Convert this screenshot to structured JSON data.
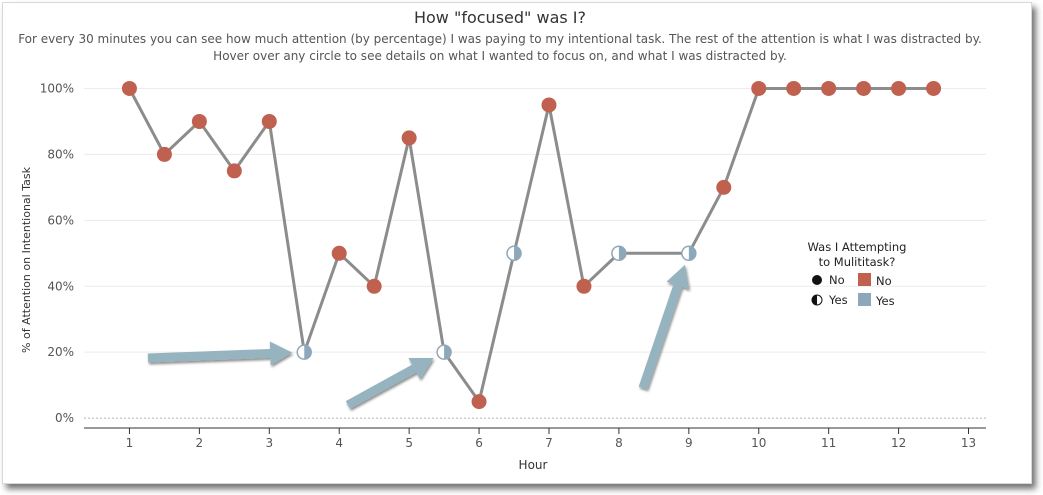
{
  "chart_data": {
    "type": "line",
    "title": "How \"focused\" was I?",
    "subtitle": [
      "For every 30 minutes you can see how much attention (by percentage) I was paying to my intentional task. The rest of the attention is what I was distracted by.",
      "Hover over any circle to see details on what I wanted to focus on, and what I was distracted by."
    ],
    "xlabel": "Hour",
    "ylabel": "% of Attention on Intentional Task",
    "xlim": [
      0.35,
      13.25
    ],
    "ylim": [
      -3,
      105
    ],
    "x_ticks": [
      1,
      2,
      3,
      4,
      5,
      6,
      7,
      8,
      9,
      10,
      11,
      12,
      13
    ],
    "x_tick_labels": [
      "1",
      "2",
      "3",
      "4",
      "5",
      "6",
      "7",
      "8",
      "9",
      "10",
      "11",
      "12",
      "13"
    ],
    "y_ticks": [
      0,
      20,
      40,
      60,
      80,
      100
    ],
    "y_tick_labels": [
      "0%",
      "20%",
      "40%",
      "60%",
      "80%",
      "100%"
    ],
    "grid": true,
    "series": [
      {
        "values": [
          {
            "x": 1.0,
            "y": 100,
            "multitask": "No"
          },
          {
            "x": 1.5,
            "y": 80,
            "multitask": "No"
          },
          {
            "x": 2.0,
            "y": 90,
            "multitask": "No"
          },
          {
            "x": 2.5,
            "y": 75,
            "multitask": "No"
          },
          {
            "x": 3.0,
            "y": 90,
            "multitask": "No"
          },
          {
            "x": 3.5,
            "y": 20,
            "multitask": "Yes"
          },
          {
            "x": 4.0,
            "y": 50,
            "multitask": "No"
          },
          {
            "x": 4.5,
            "y": 40,
            "multitask": "No"
          },
          {
            "x": 5.0,
            "y": 85,
            "multitask": "No"
          },
          {
            "x": 5.5,
            "y": 20,
            "multitask": "Yes"
          },
          {
            "x": 6.0,
            "y": 5,
            "multitask": "No"
          },
          {
            "x": 6.5,
            "y": 50,
            "multitask": "Yes"
          },
          {
            "x": 7.0,
            "y": 95,
            "multitask": "No"
          },
          {
            "x": 7.5,
            "y": 40,
            "multitask": "No"
          },
          {
            "x": 8.0,
            "y": 50,
            "multitask": "Yes"
          },
          {
            "x": 9.0,
            "y": 50,
            "multitask": "Yes"
          },
          {
            "x": 9.5,
            "y": 70,
            "multitask": "No"
          },
          {
            "x": 10.0,
            "y": 100,
            "multitask": "No"
          },
          {
            "x": 10.5,
            "y": 100,
            "multitask": "No"
          },
          {
            "x": 11.0,
            "y": 100,
            "multitask": "No"
          },
          {
            "x": 11.5,
            "y": 100,
            "multitask": "No"
          },
          {
            "x": 12.0,
            "y": 100,
            "multitask": "No"
          },
          {
            "x": 12.5,
            "y": 100,
            "multitask": "No"
          }
        ]
      }
    ],
    "legend": {
      "title_lines": [
        "Was I Attempting",
        "to Mulititask?"
      ],
      "placement": "right",
      "items": [
        {
          "label": "No",
          "color": "#c0604f",
          "shape": "filled-circle"
        },
        {
          "label": "Yes",
          "color": "#8ea8bb",
          "shape": "half-circle"
        }
      ]
    },
    "colors": {
      "no": "#c0604f",
      "yes": "#8ea8bb",
      "line": "#8c8c8c",
      "arrow": "#96b3c0"
    },
    "annotations": [
      {
        "type": "arrow",
        "points_to": {
          "x": 3.5,
          "y": 20
        }
      },
      {
        "type": "arrow",
        "points_to": {
          "x": 5.5,
          "y": 20
        }
      },
      {
        "type": "arrow",
        "points_to": {
          "x": 9.0,
          "y": 50
        }
      }
    ]
  }
}
